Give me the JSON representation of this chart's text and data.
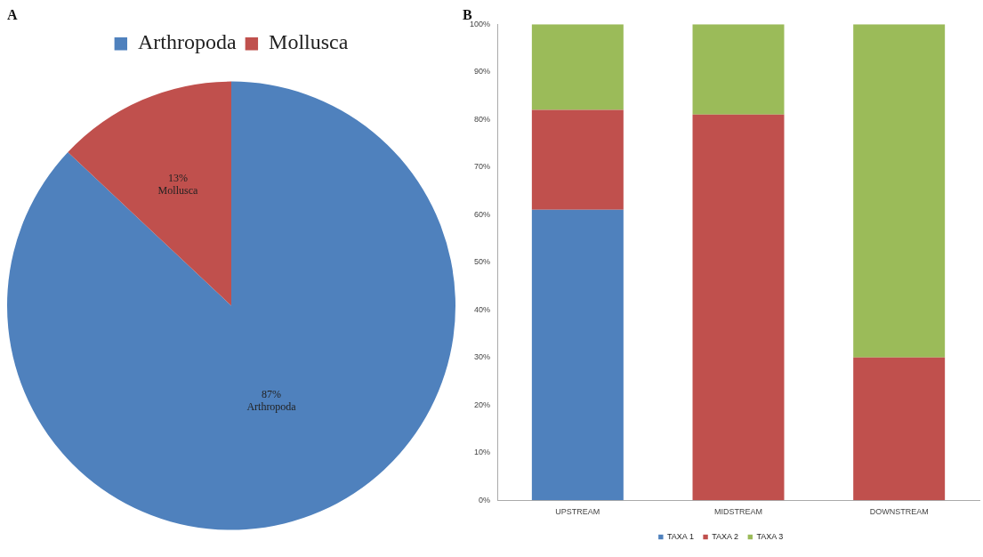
{
  "chart_data": [
    {
      "type": "pie",
      "title": "A",
      "categories": [
        "Arthropoda",
        "Mollusca"
      ],
      "values": [
        87,
        13
      ],
      "colors": [
        "#4f81bd",
        "#c0504d"
      ],
      "value_labels": [
        "87%",
        "13%"
      ],
      "legend": "top"
    },
    {
      "type": "bar",
      "title": "B",
      "stacked": true,
      "categories": [
        "UPSTREAM",
        "MIDSTREAM",
        "DOWNSTREAM"
      ],
      "series": [
        {
          "name": "TAXA 1",
          "color": "#4f81bd",
          "values": [
            61,
            0,
            0
          ]
        },
        {
          "name": "TAXA 2",
          "color": "#c0504d",
          "values": [
            21,
            81,
            30
          ]
        },
        {
          "name": "TAXA 3",
          "color": "#9bbb59",
          "values": [
            18,
            19,
            70
          ]
        }
      ],
      "ylim": [
        0,
        100
      ],
      "yticks": [
        {
          "value": 0,
          "label": "0%"
        },
        {
          "value": 10,
          "label": "10%"
        },
        {
          "value": 20,
          "label": "20%"
        },
        {
          "value": 30,
          "label": "30%"
        },
        {
          "value": 40,
          "label": "40%"
        },
        {
          "value": 50,
          "label": "50%"
        },
        {
          "value": 60,
          "label": "60%"
        },
        {
          "value": 70,
          "label": "70%"
        },
        {
          "value": 80,
          "label": "80%"
        },
        {
          "value": 90,
          "label": "90%"
        },
        {
          "value": 100,
          "label": "100%"
        }
      ],
      "grid": false,
      "legend": "bottom"
    }
  ]
}
